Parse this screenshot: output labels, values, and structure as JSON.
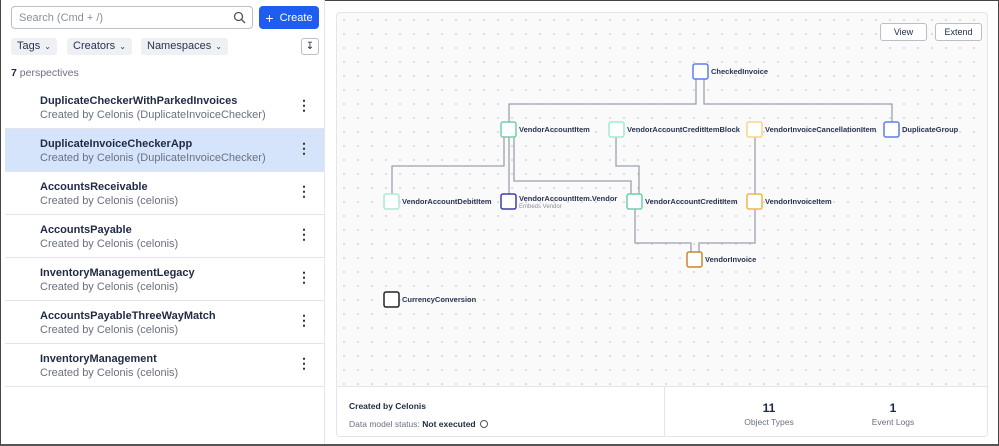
{
  "sidebar": {
    "search_placeholder": "Search (Cmd + /)",
    "create_label": "Create",
    "filters": [
      "Tags",
      "Creators",
      "Namespaces"
    ],
    "count": "7",
    "count_label": "perspectives",
    "items": [
      {
        "title": "DuplicateCheckerWithParkedInvoices",
        "subtitle": "Created by Celonis (DuplicateInvoiceChecker)",
        "selected": false
      },
      {
        "title": "DuplicateInvoiceCheckerApp",
        "subtitle": "Created by Celonis (DuplicateInvoiceChecker)",
        "selected": true
      },
      {
        "title": "AccountsReceivable",
        "subtitle": "Created by Celonis (celonis)",
        "selected": false
      },
      {
        "title": "AccountsPayable",
        "subtitle": "Created by Celonis (celonis)",
        "selected": false
      },
      {
        "title": "InventoryManagementLegacy",
        "subtitle": "Created by Celonis (celonis)",
        "selected": false
      },
      {
        "title": "AccountsPayableThreeWayMatch",
        "subtitle": "Created by Celonis (celonis)",
        "selected": false
      },
      {
        "title": "InventoryManagement",
        "subtitle": "Created by Celonis (celonis)",
        "selected": false
      }
    ]
  },
  "diagram": {
    "view_label": "View",
    "extend_label": "Extend",
    "nodes": [
      {
        "id": "CheckedInvoice",
        "label": "CheckedInvoice",
        "color": "#5b7ff0"
      },
      {
        "id": "VendorAccountItem",
        "label": "VendorAccountItem",
        "color": "#6fcfad"
      },
      {
        "id": "VendorAccountCreditItemBlock",
        "label": "VendorAccountCreditItemBlock",
        "color": "#a4ead3"
      },
      {
        "id": "VendorInvoiceCancellationItem",
        "label": "VendorInvoiceCancellationItem",
        "color": "#f8d584"
      },
      {
        "id": "DuplicateGroup",
        "label": "DuplicateGroup",
        "color": "#5b7ff0"
      },
      {
        "id": "VendorAccountDebitItem",
        "label": "VendorAccountDebitItem",
        "color": "#a8ecd8"
      },
      {
        "id": "VendorAccountItem.Vendor",
        "label": "VendorAccountItem.Vendor",
        "sublabel": "Embeds Vendor",
        "color": "#3a3fa8"
      },
      {
        "id": "VendorAccountCreditItem",
        "label": "VendorAccountCreditItem",
        "color": "#6fcfad"
      },
      {
        "id": "VendorInvoiceItem",
        "label": "VendorInvoiceItem",
        "color": "#f0b64a"
      },
      {
        "id": "VendorInvoice",
        "label": "VendorInvoice",
        "color": "#c9862d"
      },
      {
        "id": "CurrencyConversion",
        "label": "CurrencyConversion",
        "color": "#222222"
      }
    ],
    "edges": [
      [
        "CheckedInvoice",
        "VendorAccountItem"
      ],
      [
        "CheckedInvoice",
        "DuplicateGroup"
      ],
      [
        "VendorAccountItem",
        "VendorAccountDebitItem"
      ],
      [
        "VendorAccountItem",
        "VendorAccountItem.Vendor"
      ],
      [
        "VendorAccountItem",
        "VendorAccountCreditItem"
      ],
      [
        "VendorAccountCreditItemBlock",
        "VendorAccountCreditItem"
      ],
      [
        "VendorInvoiceCancellationItem",
        "VendorInvoiceItem"
      ],
      [
        "VendorAccountCreditItem",
        "VendorInvoice"
      ],
      [
        "VendorInvoiceItem",
        "VendorInvoice"
      ]
    ]
  },
  "footer": {
    "created_by": "Created by Celonis",
    "status_label": "Data model status:",
    "status_value": "Not executed",
    "object_types_count": "11",
    "object_types_label": "Object Types",
    "event_logs_count": "1",
    "event_logs_label": "Event Logs"
  }
}
